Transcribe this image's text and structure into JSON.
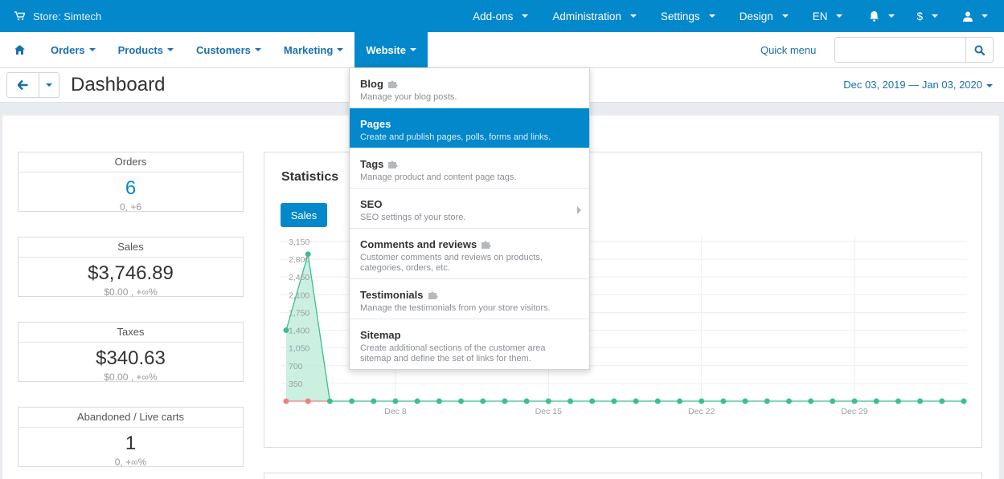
{
  "topbar": {
    "store_label": "Store: Simtech",
    "items": [
      {
        "label": "Add-ons"
      },
      {
        "label": "Administration"
      },
      {
        "label": "Settings"
      },
      {
        "label": "Design"
      },
      {
        "label": "EN"
      },
      {
        "label": "$"
      }
    ],
    "icons": [
      "cart-icon",
      "bell-icon",
      "user-icon"
    ]
  },
  "nav": {
    "home_icon": "home-icon",
    "items": [
      {
        "label": "Orders"
      },
      {
        "label": "Products"
      },
      {
        "label": "Customers"
      },
      {
        "label": "Marketing"
      },
      {
        "label": "Website"
      }
    ],
    "active": "Website",
    "quick_menu": "Quick menu",
    "search": {
      "value": "",
      "placeholder": ""
    }
  },
  "header": {
    "title": "Dashboard",
    "date_range": "Dec 03, 2019 — Jan 03, 2020"
  },
  "cards": [
    {
      "title": "Orders",
      "value": "6",
      "sub": "0, +6"
    },
    {
      "title": "Sales",
      "value": "$3,746.89",
      "sub": "$0.00 , +∞%"
    },
    {
      "title": "Taxes",
      "value": "$340.63",
      "sub": "$0.00 , +∞%"
    },
    {
      "title": "Abandoned / Live carts",
      "value": "1",
      "sub": "0, +∞%"
    }
  ],
  "statistics": {
    "title": "Statistics",
    "tab_label": "Sales"
  },
  "chart_data": {
    "type": "area",
    "series": [
      {
        "values": [
          1400,
          2900,
          0,
          0,
          0,
          0,
          0,
          0,
          0,
          0,
          0,
          0,
          0,
          0,
          0,
          0,
          0,
          0,
          0,
          0,
          0,
          0,
          0,
          0,
          0,
          0,
          0,
          0,
          0,
          0,
          0,
          0
        ]
      }
    ],
    "prev_points": 2,
    "y_ticks": [
      "3,150",
      "2,800",
      "2,450",
      "2,100",
      "1,750",
      "1,400",
      "1,050",
      "700",
      "350"
    ],
    "x_ticks": [
      "Dec 8",
      "Dec 15",
      "Dec 22",
      "Dec 29"
    ],
    "x_tick_index": [
      5,
      12,
      19,
      26
    ],
    "ylim": [
      0,
      3150
    ],
    "grid": true,
    "colors": {
      "area": "#c2ecdc",
      "line": "#3cbf8c",
      "prev": "#f08080"
    }
  },
  "dropdown": {
    "items": [
      {
        "title": "Blog",
        "desc": "Manage your blog posts.",
        "addon": true,
        "submenu": false,
        "active": false
      },
      {
        "title": "Pages",
        "desc": "Create and publish pages, polls, forms and links.",
        "addon": false,
        "submenu": false,
        "active": true
      },
      {
        "title": "Tags",
        "desc": "Manage product and content page tags.",
        "addon": true,
        "submenu": false,
        "active": false
      },
      {
        "title": "SEO",
        "desc": "SEO settings of your store.",
        "addon": false,
        "submenu": true,
        "active": false
      },
      {
        "title": "Comments and reviews",
        "desc": "Customer comments and reviews on products, categories, orders, etc.",
        "addon": true,
        "submenu": false,
        "active": false
      },
      {
        "title": "Testimonials",
        "desc": "Manage the testimonials from your store visitors.",
        "addon": true,
        "submenu": false,
        "active": false
      },
      {
        "title": "Sitemap",
        "desc": "Create additional sections of the customer area sitemap and define the set of links for them.",
        "addon": false,
        "submenu": false,
        "active": false
      }
    ]
  }
}
